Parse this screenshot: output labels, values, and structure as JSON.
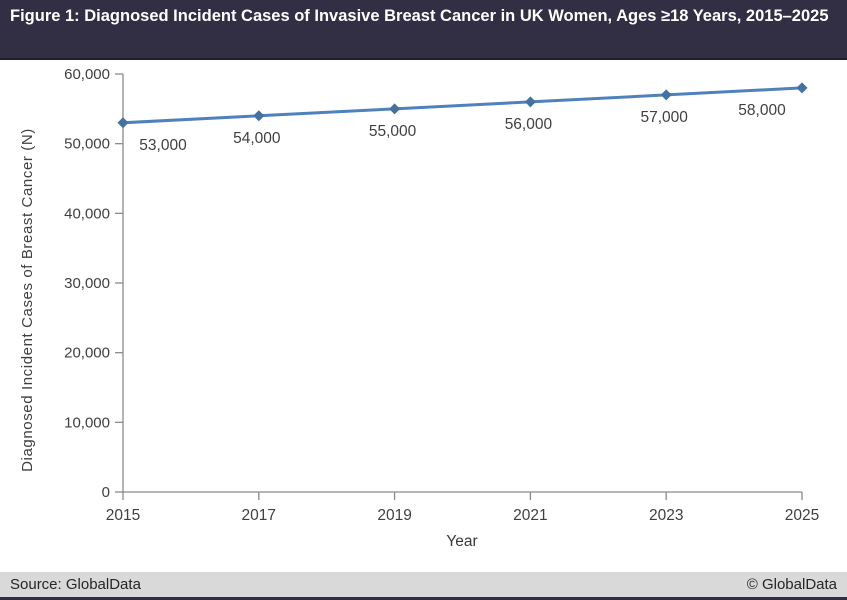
{
  "figure": {
    "title": "Figure 1: Diagnosed Incident Cases of Invasive Breast Cancer in UK Women, Ages ≥18 Years, 2015–2025"
  },
  "chart_data": {
    "type": "line",
    "x": [
      2015,
      2017,
      2019,
      2021,
      2023,
      2025
    ],
    "values": [
      53000,
      54000,
      55000,
      56000,
      57000,
      58000
    ],
    "point_labels": [
      "53,000",
      "54,000",
      "55,000",
      "56,000",
      "57,000",
      "58,000"
    ],
    "xtick_labels": [
      "2015",
      "2017",
      "2019",
      "2021",
      "2023",
      "2025"
    ],
    "yticks": [
      0,
      10000,
      20000,
      30000,
      40000,
      50000,
      60000
    ],
    "ytick_labels": [
      "0",
      "10,000",
      "20,000",
      "30,000",
      "40,000",
      "50,000",
      "60,000"
    ],
    "xlabel": "Year",
    "ylabel": "Diagnosed Incident Cases of Breast Cancer (N)",
    "ylim": [
      0,
      60000
    ],
    "grid": false,
    "legend": "none",
    "marker": "diamond",
    "line_color": "#4F81BD",
    "marker_color": "#44719E"
  },
  "footer": {
    "source": "Source: GlobalData",
    "copyright": "© GlobalData"
  },
  "colors": {
    "titlebar_bg": "#322E44",
    "footer_bg": "#D9D9D9",
    "axis": "#8A8A8A",
    "text": "#404040"
  }
}
